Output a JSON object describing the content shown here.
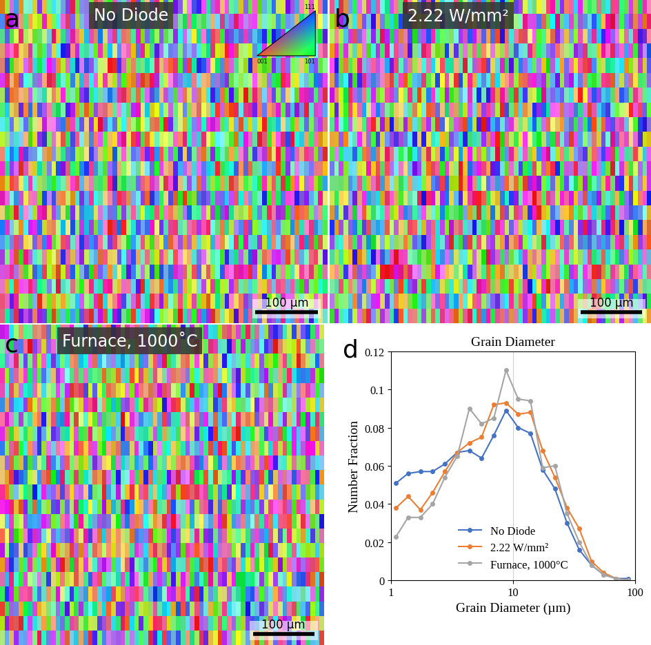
{
  "maps": [
    {
      "panel": "a",
      "title": "No Diode",
      "scale_bar": "100 µm",
      "ipf_key": [
        "111",
        "001",
        "101"
      ]
    },
    {
      "panel": "b",
      "title": "2.22 W/mm²",
      "scale_bar": "100 µm"
    },
    {
      "panel": "c",
      "title": "Furnace, 1000˚C",
      "scale_bar": "100 µm"
    }
  ],
  "chart_data": {
    "panel": "d",
    "type": "line",
    "title": "Grain Diameter",
    "x_label": "Grain Diameter (µm)",
    "y_label": "Number Fraction",
    "x": [
      1.1,
      1.38,
      1.74,
      2.19,
      2.76,
      3.48,
      4.38,
      5.51,
      6.94,
      8.73,
      10.99,
      13.84,
      17.42,
      21.93,
      27.6,
      34.75,
      43.75,
      55.07,
      69.3,
      87.3
    ],
    "series": [
      {
        "name": "No Diode",
        "color": "#4472c4",
        "marker": "o",
        "values": [
          0.051,
          0.056,
          0.057,
          0.057,
          0.061,
          0.067,
          0.068,
          0.064,
          0.076,
          0.089,
          0.08,
          0.077,
          0.058,
          0.048,
          0.03,
          0.016,
          0.008,
          0.003,
          0.001,
          0.001
        ]
      },
      {
        "name": "2.22 W/mm²",
        "color": "#ed7d31",
        "marker": "o",
        "values": [
          0.038,
          0.044,
          0.037,
          0.046,
          0.057,
          0.067,
          0.072,
          0.075,
          0.092,
          0.093,
          0.087,
          0.088,
          0.068,
          0.054,
          0.038,
          0.027,
          0.01,
          0.004,
          0.001,
          0.0
        ]
      },
      {
        "name": "Furnace, 1000°C",
        "color": "#a5a5a5",
        "marker": "o",
        "values": [
          0.023,
          0.033,
          0.033,
          0.04,
          0.054,
          0.065,
          0.09,
          0.082,
          0.085,
          0.11,
          0.095,
          0.094,
          0.059,
          0.06,
          0.035,
          0.02,
          0.008,
          0.003,
          0.001,
          0.0
        ]
      }
    ],
    "log": "x",
    "xlim": [
      1,
      100
    ],
    "xticks": [
      1,
      10,
      100
    ],
    "ylim": [
      0,
      0.12
    ],
    "yticks": [
      0,
      0.02,
      0.04,
      0.06,
      0.08,
      0.1,
      0.12
    ],
    "grid": "x",
    "legend": "lower center"
  }
}
